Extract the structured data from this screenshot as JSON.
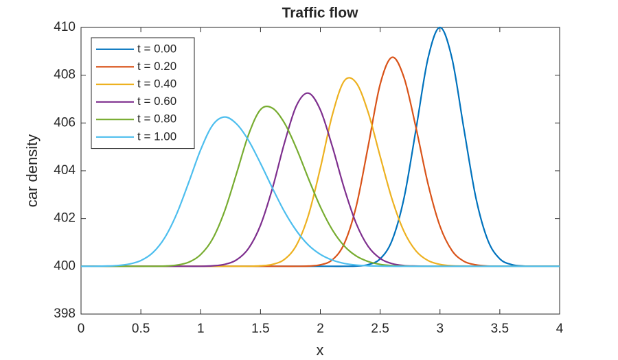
{
  "chart_data": {
    "type": "line",
    "title": "Traffic flow",
    "xlabel": "x",
    "ylabel": "car density",
    "x": [
      0,
      0.1,
      0.2,
      0.3,
      0.4,
      0.5,
      0.6,
      0.7,
      0.8,
      0.9,
      1,
      1.1,
      1.2,
      1.3,
      1.4,
      1.5,
      1.6,
      1.7,
      1.8,
      1.9,
      2,
      2.1,
      2.2,
      2.3,
      2.4,
      2.5,
      2.6,
      2.7,
      2.8,
      2.9,
      3,
      3.1,
      3.2,
      3.3,
      3.4,
      3.5,
      3.6,
      3.7,
      3.8,
      3.9,
      4
    ],
    "series": [
      {
        "name": "t = 0.00",
        "color": "#0072bd",
        "values": [
          400,
          400,
          400,
          400,
          400,
          400,
          400,
          400,
          400,
          400,
          400,
          400,
          400,
          400,
          400,
          400,
          400,
          400,
          400,
          400,
          400,
          400,
          400,
          400.01,
          400.07,
          400.31,
          401.09,
          402.87,
          405.75,
          408.71,
          410,
          408.71,
          405.75,
          402.87,
          401.09,
          400.31,
          400.07,
          400.01,
          400,
          400,
          400
        ]
      },
      {
        "name": "t = 0.20",
        "color": "#d95319",
        "values": [
          400,
          400,
          400,
          400,
          400,
          400,
          400,
          400,
          400,
          400,
          400,
          400,
          400,
          400,
          400,
          400,
          400,
          400,
          400,
          400.01,
          400.06,
          400.27,
          400.95,
          402.51,
          405.03,
          407.62,
          408.75,
          407.89,
          405.79,
          403.45,
          401.68,
          400.66,
          400.21,
          400.06,
          400.01,
          400,
          400,
          400,
          400,
          400,
          400
        ]
      },
      {
        "name": "t = 0.40",
        "color": "#edb120",
        "values": [
          400,
          400,
          400,
          400,
          400,
          400,
          400,
          400,
          400,
          400,
          400,
          400,
          400,
          400,
          400,
          400.02,
          400.08,
          400.29,
          400.88,
          402.13,
          404.11,
          406.33,
          407.76,
          407.68,
          406.44,
          404.6,
          402.8,
          401.45,
          400.64,
          400.24,
          400.08,
          400.02,
          400.01,
          400,
          400,
          400,
          400,
          400,
          400,
          400,
          400
        ]
      },
      {
        "name": "t = 0.60",
        "color": "#7e2f8e",
        "values": [
          400,
          400,
          400,
          400,
          400,
          400,
          400,
          400,
          400,
          400,
          400,
          400.02,
          400.08,
          400.27,
          400.75,
          401.72,
          403.27,
          405.16,
          406.72,
          407.25,
          406.55,
          405.02,
          403.26,
          401.79,
          400.83,
          400.33,
          400.11,
          400.03,
          400.01,
          400,
          400,
          400,
          400,
          400,
          400,
          400,
          400,
          400,
          400,
          400,
          400
        ]
      },
      {
        "name": "t = 0.80",
        "color": "#77ac30",
        "values": [
          400,
          400,
          400,
          400,
          400,
          400,
          400,
          400.01,
          400.05,
          400.17,
          400.49,
          401.15,
          402.31,
          403.89,
          405.51,
          406.56,
          406.62,
          406,
          404.94,
          403.68,
          402.49,
          401.53,
          400.85,
          400.43,
          400.2,
          400.08,
          400.03,
          400.01,
          400,
          400,
          400,
          400,
          400,
          400,
          400,
          400,
          400,
          400,
          400,
          400,
          400
        ]
      },
      {
        "name": "t = 1.00",
        "color": "#4dbeee",
        "values": [
          400,
          400,
          400.01,
          400.03,
          400.09,
          400.24,
          400.57,
          401.2,
          402.2,
          403.51,
          404.88,
          405.91,
          406.25,
          405.96,
          405.27,
          404.31,
          403.27,
          402.29,
          401.49,
          400.89,
          400.5,
          400.26,
          400.12,
          400.05,
          400.02,
          400.01,
          400,
          400,
          400,
          400,
          400,
          400,
          400,
          400,
          400,
          400,
          400,
          400,
          400,
          400,
          400
        ]
      }
    ],
    "xlim": [
      0,
      4
    ],
    "xticks": [
      0,
      0.5,
      1,
      1.5,
      2,
      2.5,
      3,
      3.5,
      4
    ],
    "ylim": [
      398,
      410
    ],
    "yticks": [
      398,
      400,
      402,
      404,
      406,
      408,
      410
    ],
    "legend": "upper left",
    "grid": false
  }
}
